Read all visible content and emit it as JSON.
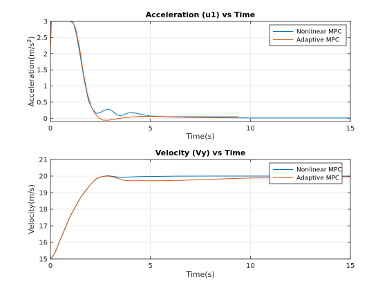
{
  "colors": {
    "nonlinear": "#0072BD",
    "adaptive": "#D95319",
    "grid": "#dcdcdc",
    "axis": "#262626"
  },
  "chart_data": [
    {
      "type": "line",
      "title": "Acceleration (u1) vs Time",
      "xlabel": "Time(s)",
      "ylabel_main": "Acceleration(m/s",
      "ylabel_sup": "2",
      "ylabel_end": ")",
      "xlim": [
        0,
        15
      ],
      "ylim": [
        -0.1,
        3
      ],
      "xticks": [
        0,
        5,
        10,
        15
      ],
      "yticks": [
        0,
        0.5,
        1,
        1.5,
        2,
        2.5,
        3
      ],
      "xtick_labels": [
        "0",
        "5",
        "10",
        "15"
      ],
      "ytick_labels": [
        "0",
        "0.5",
        "1",
        "1.5",
        "2",
        "2.5",
        "3"
      ],
      "grid": true,
      "legend": "top-right",
      "series": [
        {
          "name": "Nonlinear MPC",
          "color_key": "nonlinear",
          "points": [
            [
              0,
              2.3
            ],
            [
              0.05,
              3
            ],
            [
              0.5,
              3
            ],
            [
              1.0,
              3
            ],
            [
              1.15,
              2.95
            ],
            [
              1.3,
              2.6
            ],
            [
              1.5,
              1.9
            ],
            [
              1.7,
              1.15
            ],
            [
              1.9,
              0.55
            ],
            [
              2.1,
              0.28
            ],
            [
              2.3,
              0.15
            ],
            [
              2.5,
              0.18
            ],
            [
              2.7,
              0.25
            ],
            [
              2.9,
              0.29
            ],
            [
              3.1,
              0.22
            ],
            [
              3.3,
              0.12
            ],
            [
              3.5,
              0.07
            ],
            [
              3.7,
              0.12
            ],
            [
              3.9,
              0.17
            ],
            [
              4.1,
              0.18
            ],
            [
              4.4,
              0.14
            ],
            [
              4.7,
              0.1
            ],
            [
              5,
              0.07
            ],
            [
              6,
              0.04
            ],
            [
              8,
              0.02
            ],
            [
              10,
              0.01
            ],
            [
              15,
              0.01
            ]
          ]
        },
        {
          "name": "Adaptive MPC",
          "color_key": "adaptive",
          "points": [
            [
              0,
              2.1
            ],
            [
              0.05,
              3
            ],
            [
              0.5,
              3
            ],
            [
              1.1,
              3
            ],
            [
              1.25,
              2.8
            ],
            [
              1.45,
              2.2
            ],
            [
              1.65,
              1.4
            ],
            [
              1.85,
              0.75
            ],
            [
              2.05,
              0.35
            ],
            [
              2.25,
              0.12
            ],
            [
              2.45,
              0.0
            ],
            [
              2.65,
              -0.06
            ],
            [
              2.9,
              -0.06
            ],
            [
              3.2,
              -0.03
            ],
            [
              3.6,
              0.01
            ],
            [
              4,
              0.04
            ],
            [
              4.5,
              0.06
            ],
            [
              5,
              0.06
            ],
            [
              6,
              0.05
            ],
            [
              7,
              0.05
            ],
            [
              8,
              0.05
            ],
            [
              9.4,
              0.05
            ]
          ]
        }
      ]
    },
    {
      "type": "line",
      "title": "Velocity (Vy) vs Time",
      "xlabel": "Time(s)",
      "ylabel_main": "Velocity(m/s)",
      "ylabel_sup": "",
      "ylabel_end": "",
      "xlim": [
        0,
        15
      ],
      "ylim": [
        15,
        21
      ],
      "xticks": [
        0,
        5,
        10,
        15
      ],
      "yticks": [
        15,
        16,
        17,
        18,
        19,
        20,
        21
      ],
      "xtick_labels": [
        "0",
        "5",
        "10",
        "15"
      ],
      "ytick_labels": [
        "15",
        "16",
        "17",
        "18",
        "19",
        "20",
        "21"
      ],
      "grid": true,
      "legend": "top-right",
      "series": [
        {
          "name": "Nonlinear MPC",
          "color_key": "nonlinear",
          "points": [
            [
              0,
              15
            ],
            [
              0.2,
              15.3
            ],
            [
              0.5,
              16.2
            ],
            [
              1.0,
              17.6
            ],
            [
              1.5,
              18.7
            ],
            [
              2.0,
              19.5
            ],
            [
              2.3,
              19.85
            ],
            [
              2.6,
              19.98
            ],
            [
              2.9,
              20.02
            ],
            [
              3.2,
              19.97
            ],
            [
              3.6,
              19.9
            ],
            [
              4.0,
              19.95
            ],
            [
              4.5,
              19.97
            ],
            [
              6,
              19.99
            ],
            [
              8,
              20
            ],
            [
              10,
              20
            ],
            [
              15,
              20
            ]
          ]
        },
        {
          "name": "Adaptive MPC",
          "color_key": "adaptive",
          "points": [
            [
              0,
              15
            ],
            [
              0.2,
              15.3
            ],
            [
              0.5,
              16.2
            ],
            [
              1.0,
              17.6
            ],
            [
              1.5,
              18.7
            ],
            [
              2.0,
              19.5
            ],
            [
              2.3,
              19.85
            ],
            [
              2.6,
              19.98
            ],
            [
              2.9,
              20.0
            ],
            [
              3.2,
              19.93
            ],
            [
              3.5,
              19.8
            ],
            [
              3.8,
              19.72
            ],
            [
              4.5,
              19.72
            ],
            [
              5,
              19.72
            ],
            [
              6,
              19.73
            ],
            [
              7,
              19.76
            ],
            [
              8,
              19.8
            ],
            [
              9,
              19.85
            ],
            [
              10,
              19.88
            ],
            [
              11,
              19.9
            ],
            [
              12,
              19.92
            ],
            [
              13,
              19.94
            ],
            [
              15,
              19.96
            ]
          ]
        }
      ]
    }
  ]
}
